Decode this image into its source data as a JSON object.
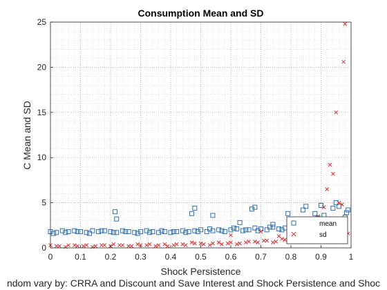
{
  "chart_data": {
    "type": "scatter",
    "title": "Consumption Mean and SD",
    "xlabel": "Shock Persistence",
    "ylabel": "C Mean and SD",
    "caption": "ndom vary by: CRRA and Discount and Save Interest and Shock Persistence and Shoc",
    "xlim": [
      0,
      1
    ],
    "ylim": [
      0,
      25
    ],
    "xticks": [
      "0",
      "0.1",
      "0.2",
      "0.3",
      "0.4",
      "0.5",
      "0.6",
      "0.7",
      "0.8",
      "0.9",
      "1"
    ],
    "yticks": [
      "0",
      "5",
      "10",
      "15",
      "20",
      "25"
    ],
    "grid": "minor dotted",
    "legend_position": "bottom-right",
    "series": [
      {
        "name": "mean",
        "marker": "square",
        "color": "#2e6fb0",
        "x": [
          0.0,
          0.02,
          0.04,
          0.06,
          0.08,
          0.1,
          0.12,
          0.14,
          0.16,
          0.18,
          0.2,
          0.22,
          0.24,
          0.26,
          0.28,
          0.3,
          0.32,
          0.34,
          0.36,
          0.38,
          0.4,
          0.42,
          0.44,
          0.46,
          0.48,
          0.5,
          0.52,
          0.54,
          0.56,
          0.58,
          0.6,
          0.62,
          0.64,
          0.66,
          0.68,
          0.7,
          0.72,
          0.74,
          0.76,
          0.78,
          0.8,
          0.82,
          0.84,
          0.86,
          0.88,
          0.9,
          0.92,
          0.94,
          0.96,
          0.98,
          0.01,
          0.05,
          0.09,
          0.13,
          0.17,
          0.21,
          0.25,
          0.29,
          0.33,
          0.37,
          0.41,
          0.45,
          0.49,
          0.53,
          0.57,
          0.61,
          0.65,
          0.69,
          0.73,
          0.77,
          0.81,
          0.85,
          0.89,
          0.93,
          0.97,
          0.215,
          0.22,
          0.47,
          0.48,
          0.54,
          0.63,
          0.67,
          0.68,
          0.74,
          0.79,
          0.84,
          0.85,
          0.88,
          0.9,
          0.92,
          0.93,
          0.95,
          0.97,
          0.98,
          0.91,
          0.94,
          0.96,
          0.99,
          0.985,
          0.87,
          0.89
        ],
        "y": [
          1.8,
          1.7,
          1.9,
          1.8,
          1.9,
          1.8,
          1.7,
          1.9,
          1.8,
          1.9,
          1.8,
          1.7,
          1.9,
          1.8,
          1.7,
          1.8,
          1.9,
          1.8,
          1.7,
          1.8,
          1.7,
          1.8,
          1.9,
          1.8,
          1.9,
          2.0,
          1.8,
          1.9,
          2.0,
          1.8,
          2.0,
          2.1,
          1.9,
          2.0,
          2.2,
          2.1,
          2.0,
          2.3,
          2.1,
          2.2,
          2.4,
          2.3,
          2.5,
          2.6,
          2.4,
          2.6,
          2.8,
          2.5,
          2.9,
          2.7,
          1.6,
          1.7,
          1.8,
          1.6,
          1.9,
          1.7,
          1.8,
          1.6,
          1.7,
          1.9,
          1.8,
          1.7,
          1.8,
          2.1,
          1.9,
          2.2,
          2.0,
          1.9,
          2.3,
          2.0,
          2.2,
          2.1,
          2.3,
          2.4,
          2.6,
          4.0,
          3.2,
          3.8,
          4.4,
          3.6,
          2.8,
          4.3,
          4.5,
          2.6,
          3.8,
          4.2,
          4.6,
          3.8,
          4.7,
          3.0,
          2.5,
          5.0,
          3.1,
          3.4,
          3.6,
          4.4,
          4.6,
          4.2,
          3.9,
          2.2,
          3.3
        ]
      },
      {
        "name": "sd",
        "marker": "x",
        "color": "#d9302e",
        "x": [
          0.0,
          0.03,
          0.06,
          0.09,
          0.12,
          0.15,
          0.18,
          0.21,
          0.24,
          0.27,
          0.3,
          0.33,
          0.36,
          0.39,
          0.42,
          0.45,
          0.48,
          0.51,
          0.54,
          0.57,
          0.6,
          0.63,
          0.66,
          0.69,
          0.72,
          0.75,
          0.78,
          0.81,
          0.84,
          0.87,
          0.9,
          0.93,
          0.96,
          0.99,
          0.02,
          0.05,
          0.08,
          0.11,
          0.14,
          0.17,
          0.2,
          0.23,
          0.26,
          0.29,
          0.32,
          0.35,
          0.38,
          0.41,
          0.44,
          0.47,
          0.5,
          0.53,
          0.56,
          0.59,
          0.62,
          0.65,
          0.68,
          0.71,
          0.74,
          0.77,
          0.8,
          0.83,
          0.86,
          0.89,
          0.92,
          0.95,
          0.98,
          0.6,
          0.7,
          0.76,
          0.82,
          0.85,
          0.88,
          0.91,
          0.92,
          0.93,
          0.94,
          0.95,
          0.96,
          0.97,
          0.975,
          0.98,
          0.9,
          0.87,
          0.89,
          0.915
        ],
        "y": [
          0.3,
          0.2,
          0.3,
          0.2,
          0.3,
          0.2,
          0.3,
          0.4,
          0.3,
          0.2,
          0.3,
          0.4,
          0.3,
          0.2,
          0.4,
          0.3,
          0.5,
          0.4,
          0.5,
          0.4,
          0.6,
          0.5,
          0.7,
          0.6,
          0.8,
          0.7,
          0.9,
          1.0,
          1.2,
          1.1,
          1.5,
          1.8,
          2.2,
          1.6,
          0.2,
          0.1,
          0.3,
          0.2,
          0.1,
          0.3,
          0.2,
          0.3,
          0.2,
          0.4,
          0.3,
          0.2,
          0.4,
          0.3,
          0.4,
          0.6,
          0.5,
          0.3,
          0.6,
          0.5,
          0.4,
          0.6,
          0.7,
          0.8,
          0.6,
          1.0,
          0.9,
          1.1,
          1.4,
          1.3,
          1.6,
          2.0,
          1.8,
          1.4,
          1.8,
          1.3,
          2.2,
          2.6,
          3.0,
          4.5,
          6.5,
          9.2,
          8.2,
          15.0,
          5.0,
          4.8,
          20.6,
          24.8,
          2.8,
          1.9,
          3.5,
          3.1
        ]
      }
    ]
  }
}
